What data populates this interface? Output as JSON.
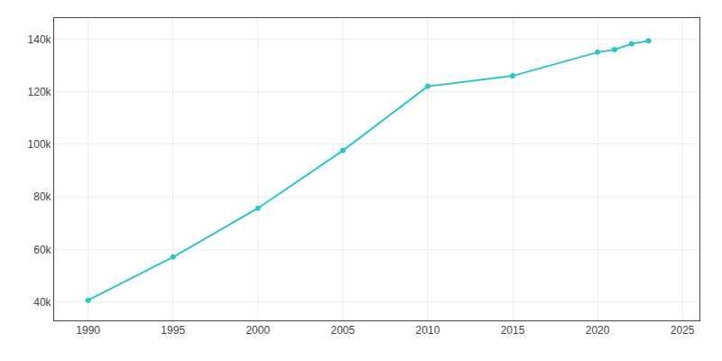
{
  "chart_data": {
    "type": "line",
    "x": [
      1990,
      1995,
      2000,
      2005,
      2010,
      2015,
      2020,
      2021,
      2022,
      2023
    ],
    "values": [
      40663,
      57083,
      75668,
      97600,
      122041,
      126000,
      135000,
      136000,
      138177,
      139341
    ],
    "color": "#2dc5c5",
    "marker": "circle",
    "xlim": [
      1988,
      2026
    ],
    "ylim": [
      33000,
      148000
    ],
    "xticks": [
      1990,
      1995,
      2000,
      2005,
      2010,
      2015,
      2020,
      2025
    ],
    "yticks": [
      {
        "value": 40000,
        "label": "40k"
      },
      {
        "value": 60000,
        "label": "60k"
      },
      {
        "value": 80000,
        "label": "80k"
      },
      {
        "value": 100000,
        "label": "100k"
      },
      {
        "value": 120000,
        "label": "120k"
      },
      {
        "value": 140000,
        "label": "140k"
      }
    ],
    "grid": true
  }
}
